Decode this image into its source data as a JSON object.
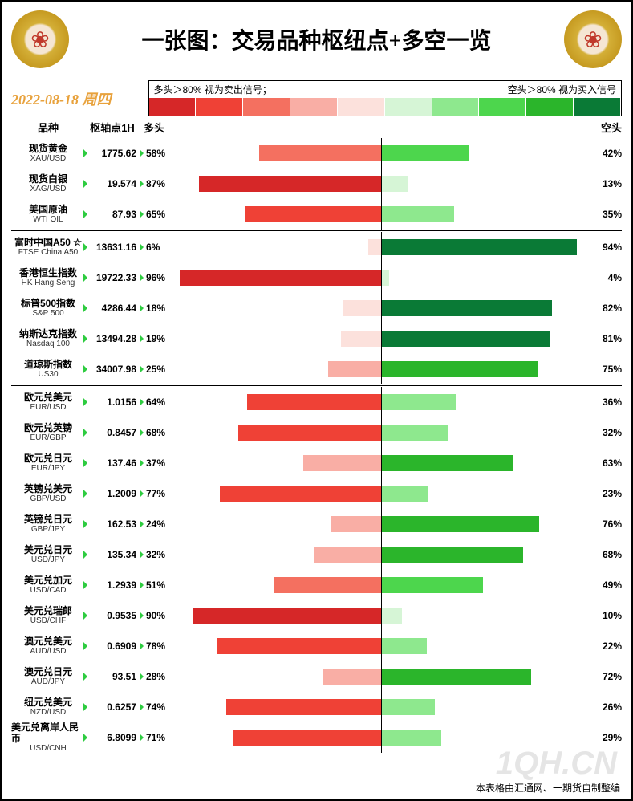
{
  "title": "一张图：交易品种枢纽点+多空一览",
  "date": "2022-08-18 周四",
  "legend": {
    "left": "多头＞80% 视为卖出信号；",
    "right": "空头＞80% 视为买入信号"
  },
  "headers": {
    "name": "品种",
    "pivot": "枢轴点1H",
    "long": "多头",
    "short": "空头"
  },
  "red_scale": [
    "#d62728",
    "#ef4136",
    "#f47060",
    "#f9aea5",
    "#fce1dc"
  ],
  "green_scale": [
    "#d6f5d6",
    "#8ee88e",
    "#4dd64d",
    "#2bb52b",
    "#0a7a36"
  ],
  "red_colors": {
    "0": "#fce1dc",
    "10": "#fce1dc",
    "20": "#f9aea5",
    "30": "#f9aea5",
    "40": "#f47060",
    "50": "#f47060",
    "60": "#ef4136",
    "70": "#ef4136",
    "80": "#d62728",
    "90": "#d62728",
    "100": "#d62728"
  },
  "green_colors": {
    "0": "#d6f5d6",
    "10": "#d6f5d6",
    "20": "#8ee88e",
    "30": "#8ee88e",
    "40": "#4dd64d",
    "50": "#4dd64d",
    "60": "#2bb52b",
    "70": "#2bb52b",
    "80": "#0a7a36",
    "90": "#0a7a36",
    "100": "#0a7a36"
  },
  "sections": [
    {
      "rows": [
        {
          "cn": "现货黄金",
          "en": "XAU/USD",
          "pivot": "1775.62",
          "long": 58,
          "short": 42
        },
        {
          "cn": "现货白银",
          "en": "XAG/USD",
          "pivot": "19.574",
          "long": 87,
          "short": 13
        },
        {
          "cn": "美国原油",
          "en": "WTI OIL",
          "pivot": "87.93",
          "long": 65,
          "short": 35
        }
      ]
    },
    {
      "rows": [
        {
          "cn": "富时中国A50 ☆",
          "en": "FTSE China A50",
          "pivot": "13631.16",
          "long": 6,
          "short": 94
        },
        {
          "cn": "香港恒生指数",
          "en": "HK Hang Seng",
          "pivot": "19722.33",
          "long": 96,
          "short": 4
        },
        {
          "cn": "标普500指数",
          "en": "S&P 500",
          "pivot": "4286.44",
          "long": 18,
          "short": 82
        },
        {
          "cn": "纳斯达克指数",
          "en": "Nasdaq 100",
          "pivot": "13494.28",
          "long": 19,
          "short": 81
        },
        {
          "cn": "道琼斯指数",
          "en": "US30",
          "pivot": "34007.98",
          "long": 25,
          "short": 75
        }
      ]
    },
    {
      "rows": [
        {
          "cn": "欧元兑美元",
          "en": "EUR/USD",
          "pivot": "1.0156",
          "long": 64,
          "short": 36
        },
        {
          "cn": "欧元兑英镑",
          "en": "EUR/GBP",
          "pivot": "0.8457",
          "long": 68,
          "short": 32
        },
        {
          "cn": "欧元兑日元",
          "en": "EUR/JPY",
          "pivot": "137.46",
          "long": 37,
          "short": 63
        },
        {
          "cn": "英镑兑美元",
          "en": "GBP/USD",
          "pivot": "1.2009",
          "long": 77,
          "short": 23
        },
        {
          "cn": "英镑兑日元",
          "en": "GBP/JPY",
          "pivot": "162.53",
          "long": 24,
          "short": 76
        },
        {
          "cn": "美元兑日元",
          "en": "USD/JPY",
          "pivot": "135.34",
          "long": 32,
          "short": 68
        },
        {
          "cn": "美元兑加元",
          "en": "USD/CAD",
          "pivot": "1.2939",
          "long": 51,
          "short": 49
        },
        {
          "cn": "美元兑瑞郎",
          "en": "USD/CHF",
          "pivot": "0.9535",
          "long": 90,
          "short": 10
        },
        {
          "cn": "澳元兑美元",
          "en": "AUD/USD",
          "pivot": "0.6909",
          "long": 78,
          "short": 22
        },
        {
          "cn": "澳元兑日元",
          "en": "AUD/JPY",
          "pivot": "93.51",
          "long": 28,
          "short": 72
        },
        {
          "cn": "纽元兑美元",
          "en": "NZD/USD",
          "pivot": "0.6257",
          "long": 74,
          "short": 26
        },
        {
          "cn": "美元兑离岸人民币",
          "en": "USD/CNH",
          "pivot": "6.8099",
          "long": 71,
          "short": 29
        }
      ]
    }
  ],
  "watermark": "1QH.CN",
  "footer": "本表格由汇通网、一期货自制整编"
}
